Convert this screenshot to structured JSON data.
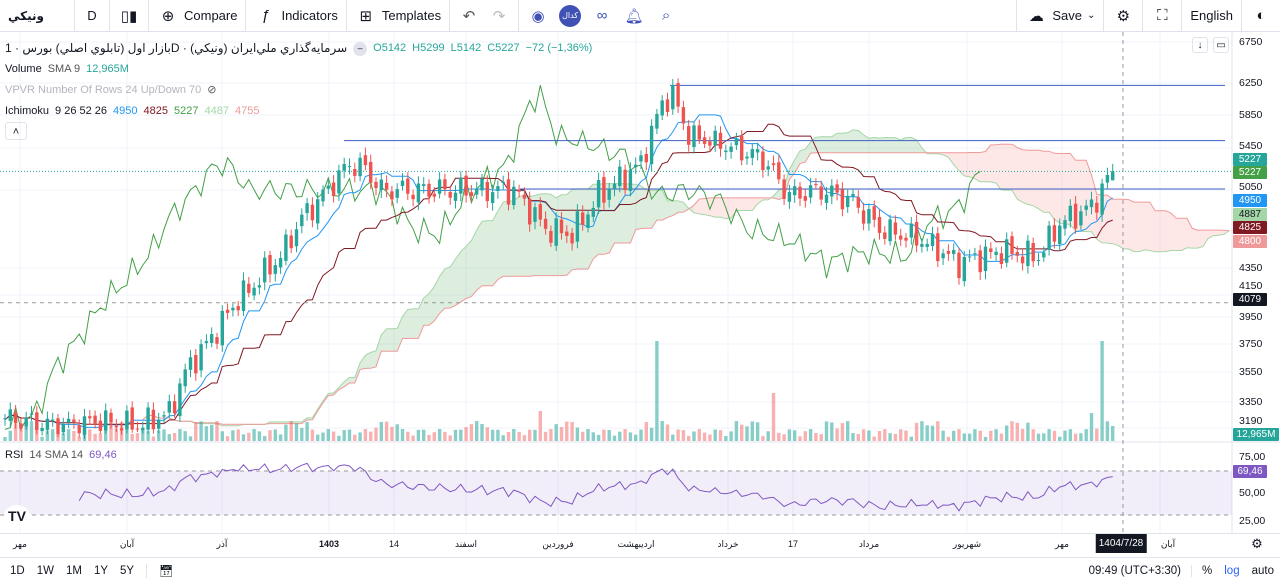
{
  "toolbar": {
    "symbol": "ونيکي",
    "interval": "D",
    "compare": "Compare",
    "indicators": "Indicators",
    "templates": "Templates",
    "save": "Save",
    "language": "English"
  },
  "legend": {
    "title": "بازار اول (تابلوي اصلي) بورس · 1D · سرمايه‌گذاري ملي‌ايران (ونيکي)",
    "ohlc": {
      "o": "O5142",
      "h": "H5299",
      "l": "L5142",
      "c": "C5227",
      "chg": "−72 (−1,36%)"
    },
    "volume": {
      "name": "Volume",
      "params": "SMA 9",
      "value": "12,965M"
    },
    "vpvr": "VPVR Number Of Rows 24 Up/Down 70",
    "ichimoku": {
      "name": "Ichimoku",
      "params": "9 26 52 26",
      "v1": "4950",
      "v2": "4825",
      "v3": "5227",
      "v4": "4487",
      "v5": "4755"
    },
    "rsi": {
      "name": "RSI",
      "params": "14 SMA 14",
      "value": "69,46"
    }
  },
  "price_axis": [
    "6750",
    "6250",
    "5850",
    "5450",
    "5050",
    "4350",
    "4150",
    "3950",
    "3750",
    "3550",
    "3350",
    "3190"
  ],
  "price_labels": [
    {
      "text": "5227",
      "color": "#26a69a"
    },
    {
      "text": "5227",
      "color": "#43a047"
    },
    {
      "text": "4950",
      "color": "#2196f3"
    },
    {
      "text": "4887",
      "color": "#a5d6a7"
    },
    {
      "text": "4825",
      "color": "#801922"
    },
    {
      "text": "4800",
      "color": "#ef9a9a"
    },
    {
      "text": "4079",
      "color": "#131722"
    },
    {
      "text": "12,965M",
      "color": "#26a69a"
    }
  ],
  "rsi_axis": [
    "75,00",
    "50,00",
    "25,00"
  ],
  "rsi_label": "69,46",
  "time_axis": [
    "مهر",
    "آبان",
    "آذر",
    "1403",
    "14",
    "اسفند",
    "فروردين",
    "ارديبهشت",
    "خرداد",
    "17",
    "مرداد",
    "شهريور",
    "مهر",
    "1404/7/28",
    "آبان"
  ],
  "bottom": {
    "ranges": [
      "1D",
      "1W",
      "1M",
      "1Y",
      "5Y"
    ],
    "time": "09:49 (UTC+3:30)",
    "pct": "%",
    "log": "log",
    "auto": "auto"
  },
  "colors": {
    "up": "#26a69a",
    "down": "#ef5350",
    "tenkan": "#2196f3",
    "kijun": "#801922",
    "chikou": "#43a047",
    "rsi": "#7e57c2"
  },
  "chart_data": {
    "type": "candlestick",
    "price_keypoints": [
      [
        0,
        3250
      ],
      [
        10,
        3200
      ],
      [
        18,
        3230
      ],
      [
        25,
        3200
      ],
      [
        31,
        3280
      ],
      [
        34,
        3550
      ],
      [
        39,
        3800
      ],
      [
        44,
        4100
      ],
      [
        52,
        4450
      ],
      [
        56,
        4800
      ],
      [
        60,
        5000
      ],
      [
        65,
        5300
      ],
      [
        68,
        5250
      ],
      [
        71,
        5050
      ],
      [
        79,
        5050
      ],
      [
        88,
        5050
      ],
      [
        96,
        5050
      ],
      [
        102,
        4700
      ],
      [
        107,
        4650
      ],
      [
        112,
        5000
      ],
      [
        120,
        5300
      ],
      [
        124,
        6000
      ],
      [
        126,
        6100
      ],
      [
        129,
        5600
      ],
      [
        135,
        5500
      ],
      [
        143,
        5350
      ],
      [
        148,
        5000
      ],
      [
        154,
        5050
      ],
      [
        160,
        4950
      ],
      [
        165,
        4700
      ],
      [
        173,
        4600
      ],
      [
        180,
        4400
      ],
      [
        188,
        4500
      ],
      [
        195,
        4450
      ],
      [
        199,
        4750
      ],
      [
        205,
        4900
      ],
      [
        209,
        5227
      ]
    ],
    "horizontal_levels": [
      6220,
      5540,
      5060
    ],
    "dashed_level": 4079,
    "volume_spikes": [
      [
        101,
        30
      ],
      [
        123,
        100
      ],
      [
        145,
        48
      ],
      [
        205,
        28
      ],
      [
        207,
        100
      ]
    ],
    "ichimoku_params": [
      9,
      26,
      52,
      26
    ],
    "rsi_period": 14
  }
}
